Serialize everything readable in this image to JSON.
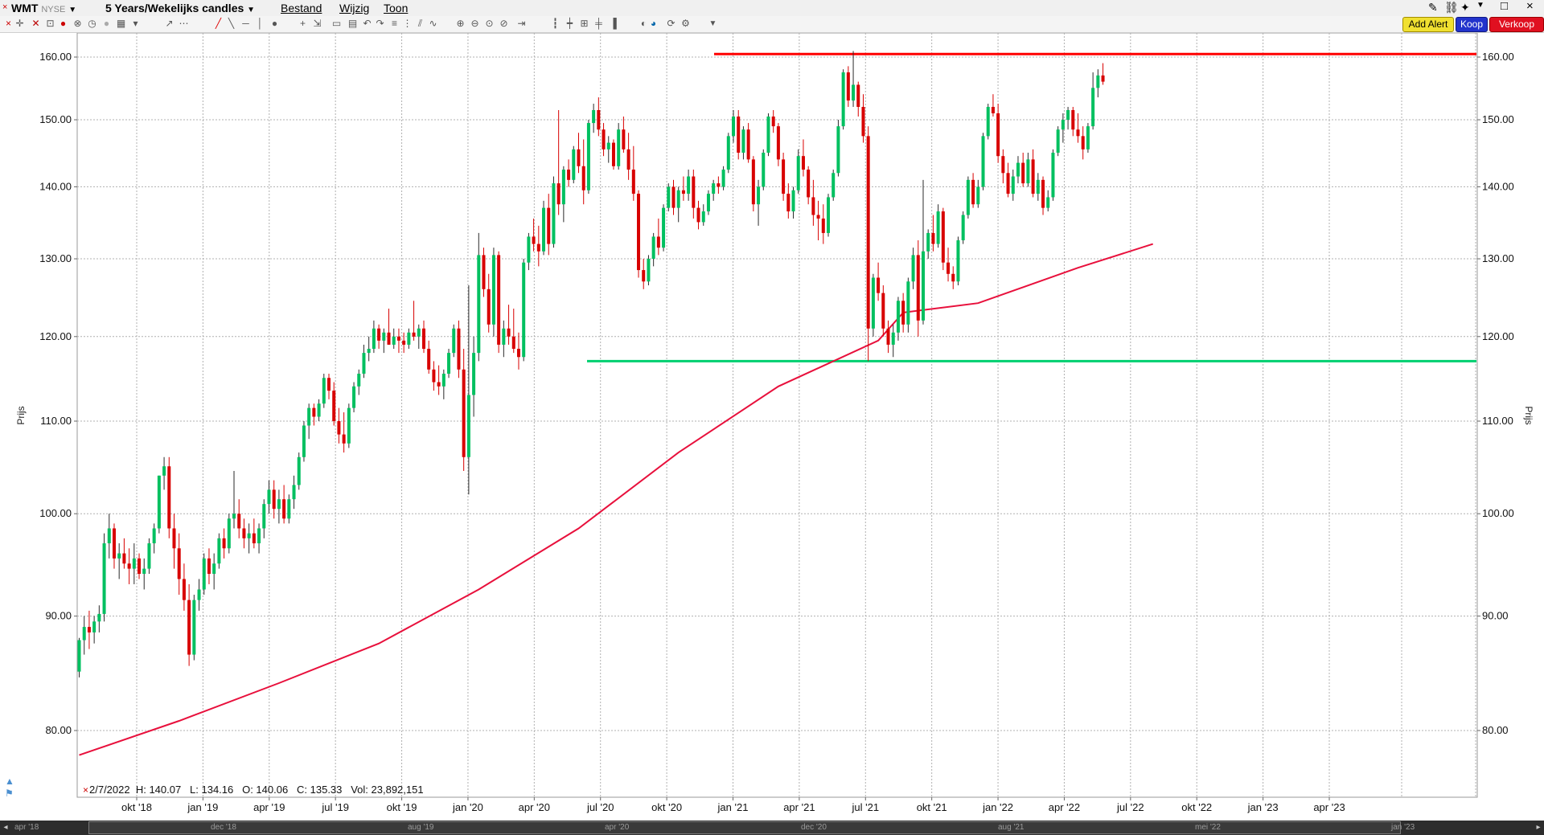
{
  "header": {
    "symbol": "WMT",
    "exchange": "NYSE",
    "timeframe": "5 Years/Wekelijks candles",
    "menu": [
      "Bestand",
      "Wijzig",
      "Toon"
    ],
    "add_alert": "Add Alert",
    "buy": "Koop",
    "sell": "Verkoop"
  },
  "colors": {
    "up_candle": "#00c060",
    "down_candle": "#d80000",
    "moving_average": "#e8103c",
    "resistance": "#ff0000",
    "support": "#00d070",
    "grid": "#b0b0b0"
  },
  "info_bar": "2/7/2022  H: 140.07   L: 134.16   O: 140.06   C: 135.33   Vol: 23,892,151",
  "navigator": {
    "labels": [
      "apr '18",
      "dec '18",
      "aug '19",
      "apr '20",
      "dec '20",
      "aug '21",
      "mei '22",
      "jan '23"
    ]
  },
  "chart_data": {
    "type": "candlestick",
    "title": "WMT NYSE 5 Years/Wekelijks candles",
    "ylabel": "Prijs",
    "y_scale": "log",
    "ylim": [
      74,
      163
    ],
    "y_ticks": [
      "80.00",
      "90.00",
      "100.00",
      "110.00",
      "120.00",
      "130.00",
      "140.00",
      "150.00",
      "160.00"
    ],
    "x_ticks": [
      "okt '18",
      "jan '19",
      "apr '19",
      "jul '19",
      "okt '19",
      "jan '20",
      "apr '20",
      "jul '20",
      "okt '20",
      "jan '21",
      "apr '21",
      "jul '21",
      "okt '21",
      "jan '22",
      "apr '22",
      "jul '22",
      "okt '22",
      "jan '23",
      "apr '23"
    ],
    "grid": true,
    "lines": [
      {
        "name": "resistance",
        "value": 160.5
      },
      {
        "name": "support",
        "value": 117.0
      }
    ],
    "ohlc_weekly": [
      [
        85.0,
        88.0,
        84.5,
        87.8
      ],
      [
        87.8,
        90.0,
        86.5,
        89.0
      ],
      [
        89.0,
        90.5,
        87.0,
        88.5
      ],
      [
        88.5,
        90.0,
        87.5,
        89.5
      ],
      [
        89.5,
        91.0,
        88.5,
        90.2
      ],
      [
        90.2,
        98.0,
        89.5,
        97.0
      ],
      [
        97.0,
        100.0,
        95.5,
        98.5
      ],
      [
        98.5,
        99.0,
        94.5,
        95.5
      ],
      [
        95.5,
        97.0,
        93.5,
        96.0
      ],
      [
        96.0,
        97.5,
        94.5,
        95.0
      ],
      [
        95.0,
        96.5,
        93.0,
        94.5
      ],
      [
        94.5,
        97.0,
        93.0,
        95.5
      ],
      [
        95.5,
        96.0,
        93.5,
        94.0
      ],
      [
        94.0,
        95.5,
        92.5,
        94.5
      ],
      [
        94.5,
        97.5,
        94.0,
        97.0
      ],
      [
        97.0,
        99.0,
        96.0,
        98.5
      ],
      [
        98.5,
        104.0,
        98.0,
        104.0
      ],
      [
        104.0,
        106.0,
        102.5,
        105.0
      ],
      [
        105.0,
        106.0,
        97.5,
        98.5
      ],
      [
        98.5,
        100.0,
        94.5,
        96.5
      ],
      [
        96.5,
        98.0,
        92.0,
        93.5
      ],
      [
        93.5,
        95.0,
        90.5,
        91.5
      ],
      [
        91.5,
        93.0,
        85.5,
        86.5
      ],
      [
        86.5,
        92.0,
        86.0,
        91.5
      ],
      [
        91.5,
        93.5,
        90.5,
        92.5
      ],
      [
        92.5,
        96.0,
        92.0,
        95.5
      ],
      [
        95.5,
        96.5,
        93.0,
        94.0
      ],
      [
        94.0,
        96.0,
        92.5,
        95.0
      ],
      [
        95.0,
        98.0,
        94.5,
        97.5
      ],
      [
        97.5,
        98.5,
        95.5,
        96.5
      ],
      [
        96.5,
        100.0,
        96.0,
        99.5
      ],
      [
        99.5,
        104.5,
        98.5,
        100.0
      ],
      [
        100.0,
        101.5,
        97.5,
        98.5
      ],
      [
        98.5,
        99.5,
        96.5,
        97.5
      ],
      [
        97.5,
        99.0,
        96.0,
        98.0
      ],
      [
        98.0,
        99.5,
        96.5,
        97.0
      ],
      [
        97.0,
        99.0,
        96.0,
        98.5
      ],
      [
        98.5,
        101.5,
        97.5,
        101.0
      ],
      [
        101.0,
        103.5,
        100.0,
        102.5
      ],
      [
        102.5,
        103.5,
        99.5,
        100.5
      ],
      [
        100.5,
        102.5,
        99.0,
        101.5
      ],
      [
        101.5,
        103.0,
        99.0,
        99.5
      ],
      [
        99.5,
        102.0,
        99.0,
        101.5
      ],
      [
        101.5,
        104.0,
        100.5,
        103.0
      ],
      [
        103.0,
        106.5,
        102.5,
        106.0
      ],
      [
        106.0,
        110.0,
        105.5,
        109.5
      ],
      [
        109.5,
        112.0,
        108.0,
        111.5
      ],
      [
        111.5,
        112.0,
        109.5,
        110.5
      ],
      [
        110.5,
        112.5,
        110.0,
        112.0
      ],
      [
        112.0,
        115.5,
        111.5,
        115.0
      ],
      [
        115.0,
        115.5,
        112.5,
        113.5
      ],
      [
        113.5,
        114.5,
        109.5,
        110.0
      ],
      [
        110.0,
        111.5,
        107.5,
        108.5
      ],
      [
        108.5,
        111.0,
        106.5,
        107.5
      ],
      [
        107.5,
        112.0,
        107.0,
        111.5
      ],
      [
        111.5,
        114.5,
        111.0,
        114.0
      ],
      [
        114.0,
        116.0,
        113.0,
        115.5
      ],
      [
        115.5,
        119.0,
        115.0,
        118.0
      ],
      [
        118.0,
        120.0,
        117.0,
        118.5
      ],
      [
        118.5,
        122.0,
        118.0,
        121.0
      ],
      [
        121.0,
        121.5,
        118.5,
        119.5
      ],
      [
        119.5,
        121.0,
        118.0,
        120.5
      ],
      [
        120.5,
        123.5,
        119.0,
        119.0
      ],
      [
        119.0,
        121.0,
        118.5,
        120.0
      ],
      [
        120.0,
        121.0,
        118.0,
        119.5
      ],
      [
        119.5,
        120.5,
        118.0,
        119.0
      ],
      [
        119.0,
        121.0,
        118.5,
        120.5
      ],
      [
        120.5,
        124.5,
        119.5,
        120.0
      ],
      [
        120.0,
        121.5,
        118.5,
        121.0
      ],
      [
        121.0,
        122.0,
        118.0,
        118.5
      ],
      [
        118.5,
        119.5,
        115.5,
        116.0
      ],
      [
        116.0,
        117.0,
        113.5,
        114.5
      ],
      [
        114.5,
        116.5,
        113.0,
        114.0
      ],
      [
        114.0,
        116.0,
        112.5,
        115.5
      ],
      [
        115.5,
        118.5,
        115.0,
        118.0
      ],
      [
        118.0,
        121.5,
        117.5,
        121.0
      ],
      [
        121.0,
        122.0,
        115.0,
        116.0
      ],
      [
        116.0,
        118.5,
        104.5,
        106.0
      ],
      [
        106.0,
        126.5,
        102.0,
        113.0
      ],
      [
        113.0,
        120.0,
        110.5,
        118.0
      ],
      [
        118.0,
        133.5,
        117.0,
        130.5
      ],
      [
        130.5,
        131.5,
        125.0,
        126.0
      ],
      [
        126.0,
        128.0,
        120.5,
        121.5
      ],
      [
        121.5,
        131.5,
        120.0,
        130.5
      ],
      [
        130.5,
        131.0,
        118.0,
        119.0
      ],
      [
        119.0,
        122.0,
        117.5,
        121.0
      ],
      [
        121.0,
        124.0,
        119.0,
        120.0
      ],
      [
        120.0,
        123.5,
        118.0,
        118.5
      ],
      [
        118.5,
        120.5,
        116.0,
        117.5
      ],
      [
        117.5,
        130.0,
        117.0,
        129.5
      ],
      [
        129.5,
        133.5,
        128.5,
        133.0
      ],
      [
        133.0,
        135.5,
        131.0,
        132.0
      ],
      [
        132.0,
        134.5,
        129.0,
        131.0
      ],
      [
        131.0,
        138.0,
        130.5,
        137.0
      ],
      [
        137.0,
        139.0,
        130.5,
        132.0
      ],
      [
        132.0,
        141.5,
        131.5,
        140.5
      ],
      [
        140.5,
        151.5,
        136.0,
        137.5
      ],
      [
        137.5,
        143.0,
        135.0,
        142.5
      ],
      [
        142.5,
        144.0,
        140.0,
        141.0
      ],
      [
        141.0,
        146.0,
        140.5,
        145.5
      ],
      [
        145.5,
        148.0,
        142.0,
        143.0
      ],
      [
        143.0,
        147.0,
        137.5,
        139.5
      ],
      [
        139.5,
        150.0,
        139.0,
        149.5
      ],
      [
        149.5,
        152.5,
        148.0,
        151.5
      ],
      [
        151.5,
        153.5,
        147.5,
        148.5
      ],
      [
        148.5,
        149.5,
        144.5,
        145.5
      ],
      [
        145.5,
        147.5,
        143.5,
        146.5
      ],
      [
        146.5,
        147.0,
        142.5,
        143.0
      ],
      [
        143.0,
        149.5,
        142.5,
        148.5
      ],
      [
        148.5,
        150.5,
        145.0,
        145.5
      ],
      [
        145.5,
        148.0,
        141.0,
        142.5
      ],
      [
        142.5,
        146.0,
        138.0,
        139.0
      ],
      [
        139.0,
        139.5,
        127.5,
        128.5
      ],
      [
        128.5,
        130.0,
        126.0,
        127.0
      ],
      [
        127.0,
        130.5,
        126.5,
        130.0
      ],
      [
        130.0,
        133.5,
        129.0,
        133.0
      ],
      [
        133.0,
        135.5,
        130.5,
        131.5
      ],
      [
        131.5,
        137.5,
        131.0,
        137.0
      ],
      [
        137.0,
        140.5,
        136.5,
        140.0
      ],
      [
        140.0,
        141.0,
        136.0,
        137.0
      ],
      [
        137.0,
        140.0,
        135.0,
        139.5
      ],
      [
        139.5,
        141.5,
        138.0,
        139.0
      ],
      [
        139.0,
        142.5,
        138.0,
        141.5
      ],
      [
        141.5,
        142.5,
        135.5,
        137.0
      ],
      [
        137.0,
        138.0,
        134.0,
        135.0
      ],
      [
        135.0,
        137.5,
        134.5,
        136.5
      ],
      [
        136.5,
        139.5,
        136.0,
        139.0
      ],
      [
        139.0,
        141.0,
        138.0,
        140.5
      ],
      [
        140.5,
        141.5,
        139.0,
        140.0
      ],
      [
        140.0,
        143.0,
        139.5,
        142.5
      ],
      [
        142.5,
        148.0,
        142.0,
        147.5
      ],
      [
        147.5,
        151.5,
        146.5,
        150.5
      ],
      [
        150.5,
        151.5,
        144.0,
        145.0
      ],
      [
        145.0,
        149.0,
        144.0,
        148.5
      ],
      [
        148.5,
        149.5,
        143.5,
        144.0
      ],
      [
        144.0,
        144.5,
        136.5,
        137.5
      ],
      [
        137.5,
        141.0,
        134.5,
        140.0
      ],
      [
        140.0,
        145.5,
        139.5,
        145.0
      ],
      [
        145.0,
        151.0,
        144.5,
        150.5
      ],
      [
        150.5,
        151.5,
        148.0,
        149.0
      ],
      [
        149.0,
        149.5,
        143.0,
        144.0
      ],
      [
        144.0,
        145.0,
        138.0,
        139.0
      ],
      [
        139.0,
        140.5,
        135.5,
        136.5
      ],
      [
        136.5,
        140.0,
        135.5,
        139.5
      ],
      [
        139.5,
        145.5,
        139.0,
        144.5
      ],
      [
        144.5,
        147.0,
        141.5,
        142.5
      ],
      [
        142.5,
        143.0,
        137.5,
        138.5
      ],
      [
        138.5,
        141.0,
        134.5,
        136.0
      ],
      [
        136.0,
        138.0,
        132.5,
        135.5
      ],
      [
        135.5,
        137.5,
        132.0,
        133.5
      ],
      [
        133.5,
        139.0,
        133.0,
        138.5
      ],
      [
        138.5,
        142.5,
        138.0,
        142.0
      ],
      [
        142.0,
        150.0,
        141.5,
        149.0
      ],
      [
        149.0,
        158.0,
        148.5,
        157.5
      ],
      [
        157.5,
        158.5,
        152.0,
        153.0
      ],
      [
        153.0,
        161.0,
        152.0,
        155.5
      ],
      [
        155.5,
        156.0,
        150.5,
        152.0
      ],
      [
        152.0,
        154.0,
        146.5,
        147.5
      ],
      [
        147.5,
        149.0,
        117.0,
        121.0
      ],
      [
        121.0,
        128.0,
        120.0,
        127.5
      ],
      [
        127.5,
        129.5,
        124.5,
        125.5
      ],
      [
        125.5,
        126.5,
        120.0,
        121.0
      ],
      [
        121.0,
        122.0,
        118.0,
        119.0
      ],
      [
        119.0,
        121.5,
        117.5,
        120.5
      ],
      [
        120.5,
        125.0,
        119.5,
        124.5
      ],
      [
        124.5,
        125.5,
        120.5,
        121.5
      ],
      [
        121.5,
        127.5,
        120.5,
        127.0
      ],
      [
        127.0,
        131.5,
        126.0,
        130.5
      ],
      [
        130.5,
        132.5,
        120.0,
        122.0
      ],
      [
        122.0,
        141.0,
        121.5,
        131.0
      ],
      [
        131.0,
        134.0,
        130.0,
        133.5
      ],
      [
        133.5,
        136.0,
        131.0,
        132.0
      ],
      [
        132.0,
        137.5,
        131.5,
        136.5
      ],
      [
        136.5,
        137.0,
        128.5,
        129.5
      ],
      [
        129.5,
        131.5,
        127.0,
        128.0
      ],
      [
        128.0,
        129.0,
        126.0,
        127.0
      ],
      [
        127.0,
        133.0,
        126.5,
        132.5
      ],
      [
        132.5,
        136.5,
        132.0,
        136.0
      ],
      [
        136.0,
        141.5,
        135.5,
        141.0
      ],
      [
        141.0,
        142.0,
        137.0,
        137.5
      ],
      [
        137.5,
        141.0,
        137.0,
        140.0
      ],
      [
        140.0,
        148.0,
        139.5,
        147.5
      ],
      [
        147.5,
        152.5,
        147.0,
        152.0
      ],
      [
        152.0,
        154.0,
        150.5,
        151.0
      ],
      [
        151.0,
        152.5,
        143.5,
        144.5
      ],
      [
        144.5,
        145.5,
        140.5,
        142.0
      ],
      [
        142.0,
        143.5,
        138.5,
        139.0
      ],
      [
        139.0,
        142.5,
        138.0,
        141.5
      ],
      [
        141.5,
        144.5,
        140.5,
        143.5
      ],
      [
        143.5,
        145.0,
        140.0,
        140.5
      ],
      [
        140.5,
        145.0,
        140.0,
        144.0
      ],
      [
        144.0,
        145.5,
        138.5,
        139.0
      ],
      [
        139.0,
        142.0,
        138.0,
        141.0
      ],
      [
        141.0,
        141.5,
        136.0,
        137.0
      ],
      [
        137.0,
        139.5,
        136.5,
        138.5
      ],
      [
        138.5,
        145.5,
        138.0,
        145.0
      ],
      [
        145.0,
        149.0,
        144.5,
        148.5
      ],
      [
        148.5,
        151.0,
        146.5,
        150.0
      ],
      [
        150.0,
        152.0,
        148.5,
        151.5
      ],
      [
        151.5,
        152.0,
        147.5,
        148.5
      ],
      [
        148.5,
        151.0,
        146.5,
        147.5
      ],
      [
        147.5,
        149.0,
        144.0,
        145.5
      ],
      [
        145.5,
        149.5,
        145.0,
        149.0
      ],
      [
        149.0,
        157.5,
        148.5,
        155.0
      ],
      [
        155.0,
        158.0,
        153.5,
        157.0
      ],
      [
        157.0,
        159.0,
        155.5,
        156.0
      ]
    ],
    "moving_average_points": [
      [
        0,
        78.0
      ],
      [
        20,
        80.8
      ],
      [
        40,
        84.0
      ],
      [
        60,
        87.5
      ],
      [
        80,
        92.5
      ],
      [
        100,
        98.5
      ],
      [
        120,
        106.5
      ],
      [
        140,
        114.0
      ],
      [
        160,
        119.5
      ],
      [
        165,
        123.0
      ],
      [
        180,
        124.2
      ],
      [
        200,
        128.8
      ],
      [
        215,
        132.0
      ]
    ]
  }
}
